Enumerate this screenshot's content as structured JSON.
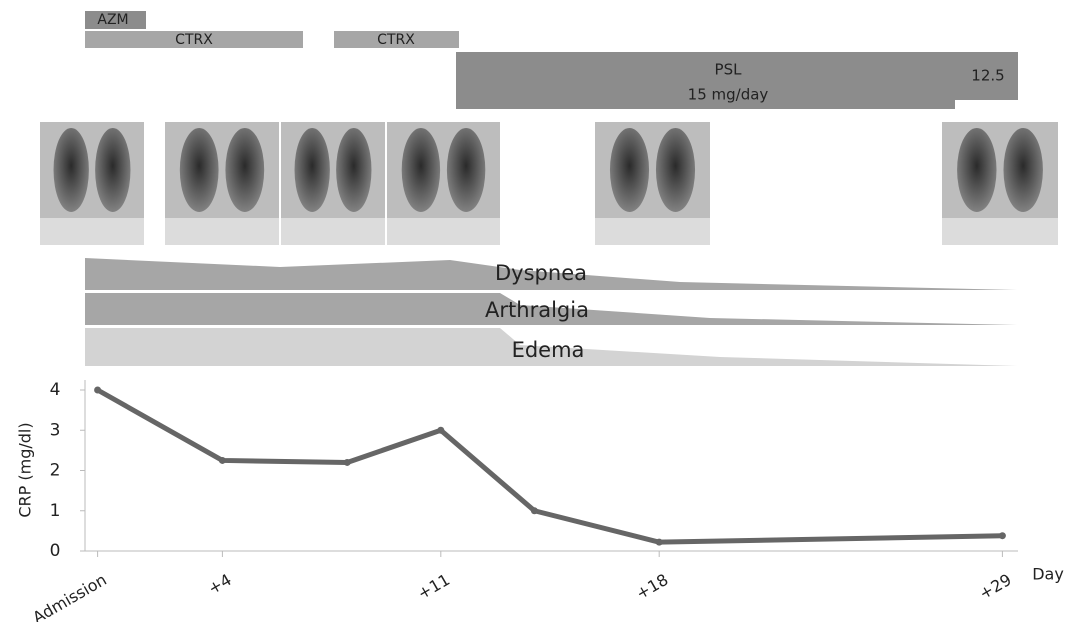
{
  "chart_data": {
    "type": "line",
    "y_label": "CRP (mg/dl)",
    "x_label": "Day",
    "x": [
      0,
      4,
      8,
      11,
      14,
      18,
      29
    ],
    "values": [
      4,
      2.25,
      2.2,
      3,
      1,
      0.22,
      0.38
    ],
    "color": "#666666",
    "xlim": [
      -0.5,
      29.5
    ],
    "xticks": [
      {
        "value": 0,
        "label": "Admission"
      },
      {
        "value": 4,
        "label": "+4"
      },
      {
        "value": 11,
        "label": "+11"
      },
      {
        "value": 18,
        "label": "+18"
      },
      {
        "value": 29,
        "label": "+29"
      }
    ],
    "ylim": [
      0,
      4
    ],
    "yticks": [
      0,
      1,
      2,
      3,
      4
    ]
  },
  "treatments": [
    "AZM",
    "CTRX",
    "CTRX",
    "PSL",
    "15 mg/day",
    "12.5"
  ],
  "symptoms": [
    "Dyspnea",
    "Arthralgia",
    "Edema"
  ]
}
